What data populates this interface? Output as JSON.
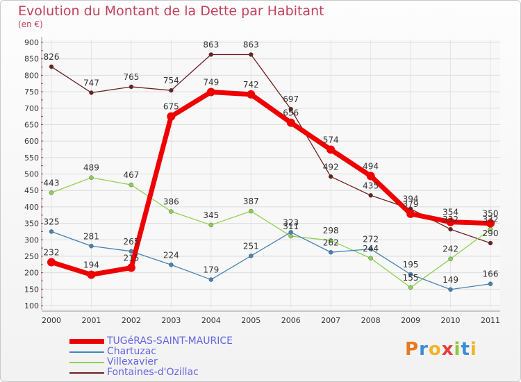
{
  "title": "Evolution du Montant de la Dette par Habitant",
  "unit": "(en €)",
  "logo": {
    "text": "Proxiti",
    "colors": [
      "#e8781e",
      "#3c8cd2",
      "#f0b428",
      "#e83c3c",
      "#8cc83c",
      "#3c8cd2",
      "#f0b428"
    ]
  },
  "chart_data": {
    "type": "line",
    "x": [
      "2000",
      "2001",
      "2002",
      "2003",
      "2004",
      "2005",
      "2006",
      "2007",
      "2008",
      "2009",
      "2010",
      "2011"
    ],
    "ylim": [
      100,
      900
    ],
    "yticks": [
      100,
      150,
      200,
      250,
      300,
      350,
      400,
      450,
      500,
      550,
      600,
      650,
      700,
      750,
      800,
      850,
      900
    ],
    "grid": true,
    "legend_position": "bottom-left",
    "series": [
      {
        "name": "Fontaines-d'Ozillac",
        "color": "#6e1e1e",
        "values": [
          826,
          747,
          765,
          754,
          863,
          863,
          697,
          492,
          435,
          394,
          332,
          290
        ],
        "labels": [
          "826",
          "747",
          "765",
          "754",
          "863",
          "863",
          "697",
          "492",
          "435",
          "394",
          "332",
          "290"
        ]
      },
      {
        "name": "Villexavier",
        "color": "#8cd250",
        "values": [
          443,
          489,
          467,
          386,
          345,
          387,
          311,
          298,
          244,
          155,
          242,
          332
        ],
        "labels": [
          "443",
          "489",
          "467",
          "386",
          "345",
          "387",
          "311",
          "298",
          "244",
          "155",
          "242",
          "332"
        ]
      },
      {
        "name": "Chartuzac",
        "color": "#4682b4",
        "values": [
          325,
          281,
          265,
          224,
          179,
          251,
          323,
          262,
          272,
          195,
          149,
          166
        ],
        "labels": [
          "325",
          "281",
          "265",
          "224",
          "179",
          "251",
          "323",
          "262",
          "272",
          "195",
          "149",
          "166"
        ]
      },
      {
        "name": "TUGéRAS-SAINT-MAURICE",
        "color": "#ee0000",
        "values": [
          232,
          194,
          215,
          675,
          749,
          742,
          656,
          574,
          494,
          379,
          354,
          350
        ],
        "labels": [
          "232",
          "194",
          "215",
          "675",
          "749",
          "742",
          "656",
          "574",
          "494",
          "379",
          "354",
          "350"
        ]
      }
    ],
    "legend_order": [
      "TUGéRAS-SAINT-MAURICE",
      "Chartuzac",
      "Villexavier",
      "Fontaines-d'Ozillac"
    ]
  }
}
